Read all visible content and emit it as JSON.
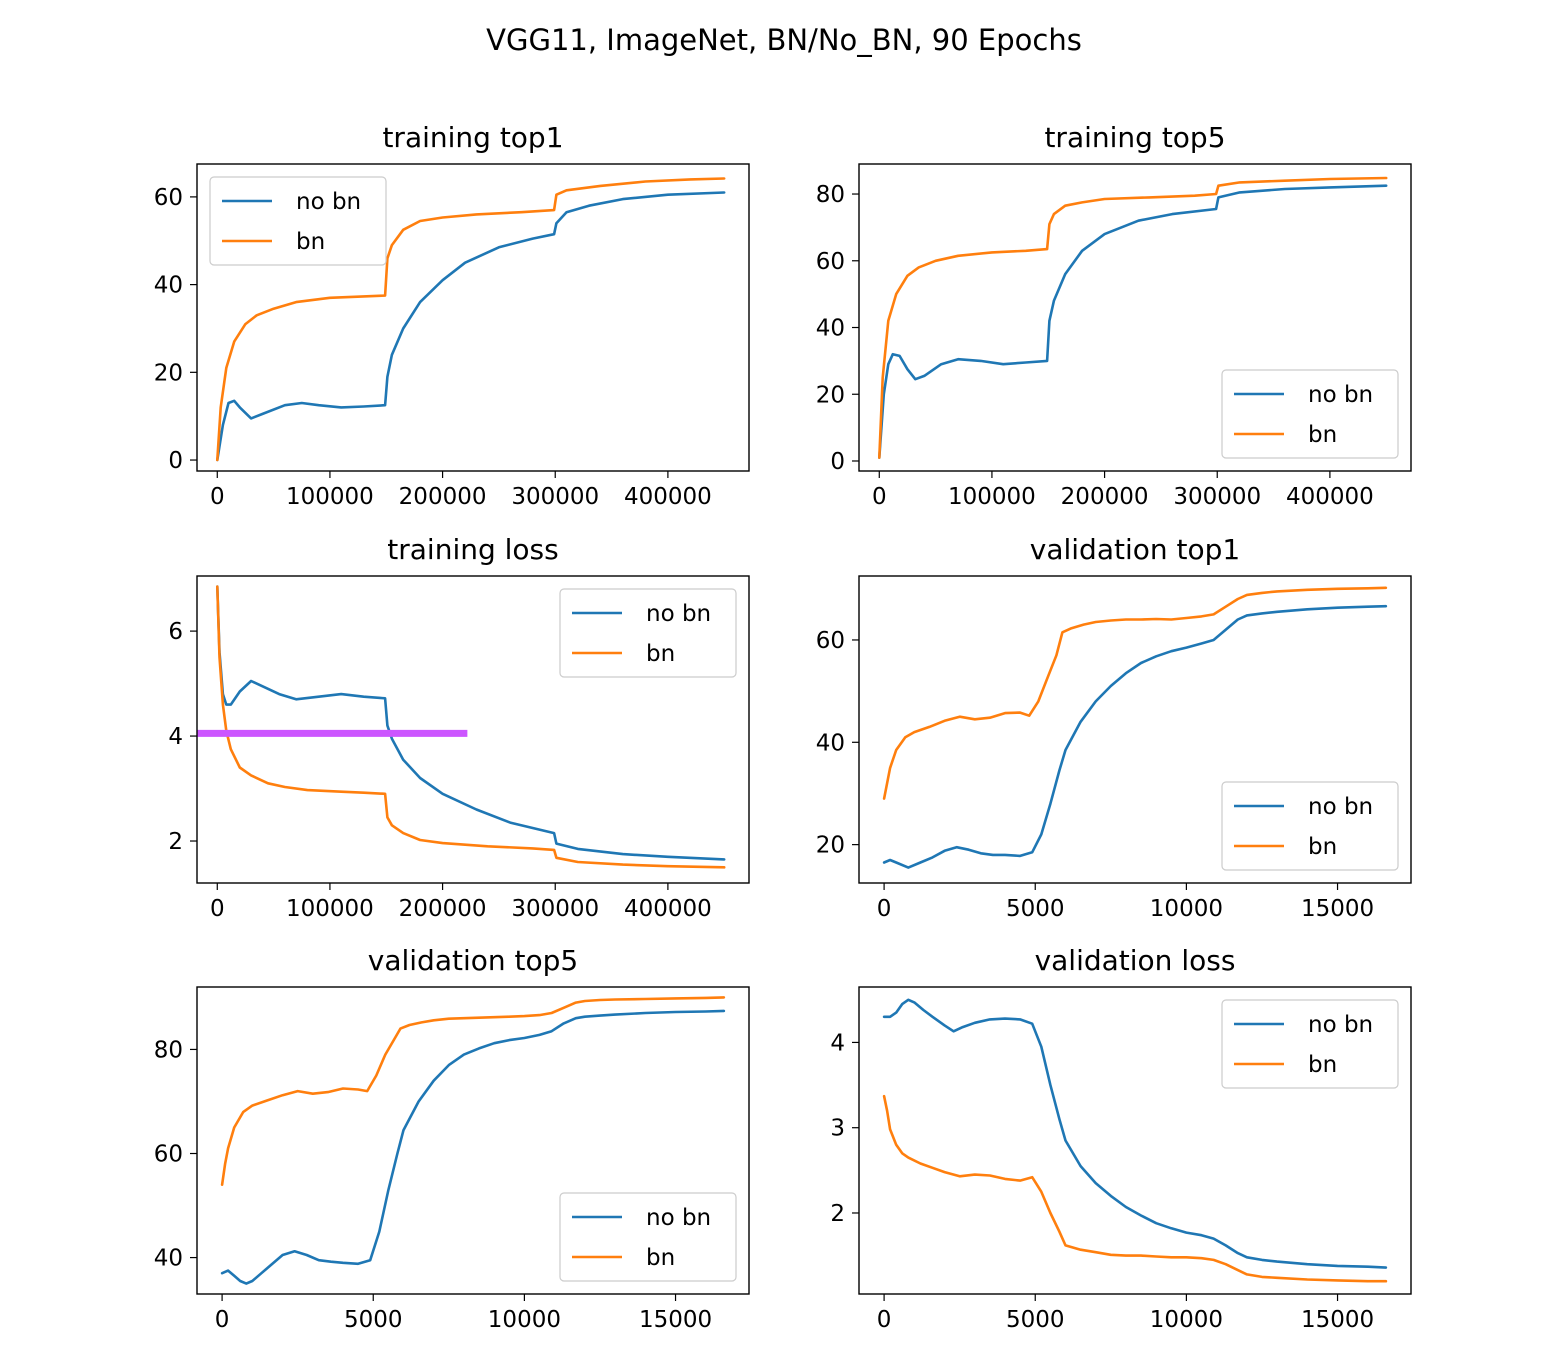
{
  "figure": {
    "title": "VGG11, ImageNet, BN/No_BN, 90 Epochs"
  },
  "colors": {
    "no_bn": "#1f77b4",
    "bn": "#ff7f0e",
    "highlight": "#cc55ff"
  },
  "chart_data": [
    {
      "id": "training_top1",
      "type": "line",
      "title": "training top1",
      "xlim": [
        -18000,
        472000
      ],
      "ylim": [
        -2.5,
        67.5
      ],
      "xticks": [
        0,
        100000,
        200000,
        300000,
        400000
      ],
      "yticks": [
        0,
        20,
        40,
        60
      ],
      "legend": {
        "position": "upper-left",
        "labels": [
          "no bn",
          "bn"
        ]
      },
      "series": [
        {
          "name": "no bn",
          "color_key": "no_bn",
          "x": [
            0,
            5000,
            10000,
            15000,
            20000,
            30000,
            40000,
            60000,
            75000,
            90000,
            110000,
            130000,
            149000,
            151000,
            155000,
            165000,
            180000,
            200000,
            220000,
            250000,
            280000,
            299000,
            301000,
            310000,
            330000,
            360000,
            400000,
            450000
          ],
          "y": [
            0,
            8,
            13,
            13.5,
            12,
            9.5,
            10.5,
            12.5,
            13,
            12.5,
            12,
            12.2,
            12.5,
            19,
            24,
            30,
            36,
            41,
            45,
            48.5,
            50.5,
            51.5,
            54,
            56.5,
            58,
            59.5,
            60.5,
            61
          ]
        },
        {
          "name": "bn",
          "color_key": "bn",
          "x": [
            0,
            3000,
            8000,
            15000,
            25000,
            35000,
            50000,
            70000,
            100000,
            130000,
            149000,
            151000,
            155000,
            165000,
            180000,
            200000,
            230000,
            270000,
            299000,
            301000,
            310000,
            340000,
            380000,
            420000,
            450000
          ],
          "y": [
            0,
            12,
            21,
            27,
            31,
            33,
            34.5,
            36,
            37,
            37.3,
            37.5,
            46,
            49,
            52.5,
            54.5,
            55.3,
            56,
            56.5,
            57,
            60.5,
            61.5,
            62.5,
            63.5,
            64,
            64.2
          ]
        }
      ]
    },
    {
      "id": "training_top5",
      "type": "line",
      "title": "training top5",
      "xlim": [
        -18000,
        472000
      ],
      "ylim": [
        -3,
        89
      ],
      "xticks": [
        0,
        100000,
        200000,
        300000,
        400000
      ],
      "yticks": [
        0,
        20,
        40,
        60,
        80
      ],
      "legend": {
        "position": "lower-right",
        "labels": [
          "no bn",
          "bn"
        ]
      },
      "series": [
        {
          "name": "no bn",
          "color_key": "no_bn",
          "x": [
            0,
            4000,
            8000,
            12000,
            18000,
            25000,
            32000,
            40000,
            55000,
            70000,
            90000,
            110000,
            130000,
            149000,
            151000,
            155000,
            165000,
            180000,
            200000,
            230000,
            260000,
            299000,
            301000,
            320000,
            360000,
            400000,
            450000
          ],
          "y": [
            1,
            20,
            29,
            32,
            31.5,
            27.5,
            24.5,
            25.5,
            29,
            30.5,
            30,
            29,
            29.5,
            30,
            42,
            48,
            56,
            63,
            68,
            72,
            74,
            75.5,
            79,
            80.5,
            81.5,
            82,
            82.5
          ]
        },
        {
          "name": "bn",
          "color_key": "bn",
          "x": [
            0,
            3000,
            8000,
            15000,
            25000,
            35000,
            50000,
            70000,
            100000,
            130000,
            149000,
            151000,
            155000,
            165000,
            180000,
            200000,
            240000,
            280000,
            299000,
            301000,
            320000,
            360000,
            400000,
            450000
          ],
          "y": [
            1,
            25,
            42,
            50,
            55.5,
            58,
            60,
            61.5,
            62.5,
            63,
            63.5,
            71,
            74,
            76.5,
            77.5,
            78.5,
            79,
            79.5,
            80,
            82.5,
            83.5,
            84,
            84.5,
            84.8
          ]
        }
      ]
    },
    {
      "id": "training_loss",
      "type": "line",
      "title": "training loss",
      "xlim": [
        -18000,
        472000
      ],
      "ylim": [
        1.2,
        7.05
      ],
      "xticks": [
        0,
        100000,
        200000,
        300000,
        400000
      ],
      "yticks": [
        2,
        4,
        6
      ],
      "legend": {
        "position": "upper-right",
        "labels": [
          "no bn",
          "bn"
        ]
      },
      "highlight_line": {
        "y": 4.05,
        "x0": -18000,
        "x1": 222000
      },
      "series": [
        {
          "name": "no bn",
          "color_key": "no_bn",
          "x": [
            0,
            2000,
            5000,
            8000,
            12000,
            20000,
            30000,
            40000,
            55000,
            70000,
            90000,
            110000,
            130000,
            149000,
            151000,
            155000,
            165000,
            180000,
            200000,
            230000,
            260000,
            299000,
            301000,
            320000,
            360000,
            400000,
            450000
          ],
          "y": [
            6.85,
            5.6,
            4.8,
            4.6,
            4.6,
            4.85,
            5.05,
            4.95,
            4.8,
            4.7,
            4.75,
            4.8,
            4.75,
            4.72,
            4.2,
            3.95,
            3.55,
            3.2,
            2.9,
            2.6,
            2.35,
            2.15,
            1.95,
            1.85,
            1.75,
            1.7,
            1.65
          ]
        },
        {
          "name": "bn",
          "color_key": "bn",
          "x": [
            0,
            2000,
            5000,
            8000,
            12000,
            20000,
            30000,
            45000,
            60000,
            80000,
            110000,
            130000,
            149000,
            151000,
            155000,
            165000,
            180000,
            200000,
            240000,
            280000,
            299000,
            301000,
            320000,
            360000,
            400000,
            450000
          ],
          "y": [
            6.85,
            5.5,
            4.6,
            4.1,
            3.75,
            3.4,
            3.25,
            3.1,
            3.03,
            2.97,
            2.94,
            2.92,
            2.9,
            2.45,
            2.3,
            2.15,
            2.02,
            1.96,
            1.9,
            1.86,
            1.83,
            1.68,
            1.6,
            1.55,
            1.52,
            1.5
          ]
        }
      ]
    },
    {
      "id": "validation_top1",
      "type": "line",
      "title": "validation top1",
      "xlim": [
        -830,
        17430
      ],
      "ylim": [
        12.5,
        72.5
      ],
      "xticks": [
        0,
        5000,
        10000,
        15000
      ],
      "yticks": [
        20,
        40,
        60
      ],
      "legend": {
        "position": "lower-right",
        "labels": [
          "no bn",
          "bn"
        ]
      },
      "series": [
        {
          "name": "no bn",
          "color_key": "no_bn",
          "x": [
            0,
            200,
            400,
            800,
            1200,
            1600,
            2000,
            2400,
            2800,
            3200,
            3600,
            4000,
            4500,
            4900,
            5200,
            5500,
            5800,
            6000,
            6500,
            7000,
            7500,
            8000,
            8500,
            9000,
            9500,
            10000,
            10500,
            10900,
            11300,
            11700,
            12000,
            12500,
            13000,
            14000,
            15000,
            16000,
            16600
          ],
          "y": [
            16.5,
            17,
            16.5,
            15.5,
            16.5,
            17.5,
            18.8,
            19.5,
            19,
            18.3,
            18,
            18,
            17.8,
            18.5,
            22,
            28,
            34.5,
            38.5,
            44,
            48,
            51,
            53.5,
            55.5,
            56.8,
            57.8,
            58.5,
            59.3,
            60,
            62,
            64,
            64.8,
            65.2,
            65.5,
            66,
            66.3,
            66.5,
            66.6
          ]
        },
        {
          "name": "bn",
          "color_key": "bn",
          "x": [
            0,
            100,
            200,
            400,
            700,
            1000,
            1500,
            2000,
            2500,
            3000,
            3500,
            4000,
            4500,
            4800,
            5100,
            5400,
            5700,
            5900,
            6200,
            6600,
            7000,
            7500,
            8000,
            8500,
            9000,
            9500,
            10000,
            10500,
            10900,
            11300,
            11700,
            12000,
            12500,
            13000,
            14000,
            15000,
            16000,
            16600
          ],
          "y": [
            29,
            32,
            35,
            38.5,
            41,
            42,
            43,
            44.2,
            45,
            44.5,
            44.8,
            45.7,
            45.8,
            45.2,
            48,
            52.5,
            57,
            61.5,
            62.3,
            63,
            63.5,
            63.8,
            64,
            64,
            64.1,
            64,
            64.3,
            64.6,
            65,
            66.5,
            68,
            68.8,
            69.2,
            69.5,
            69.8,
            70,
            70.1,
            70.2
          ]
        }
      ]
    },
    {
      "id": "validation_top5",
      "type": "line",
      "title": "validation top5",
      "xlim": [
        -830,
        17430
      ],
      "ylim": [
        33,
        92
      ],
      "xticks": [
        0,
        5000,
        10000,
        15000
      ],
      "yticks": [
        40,
        60,
        80
      ],
      "legend": {
        "position": "lower-right",
        "labels": [
          "no bn",
          "bn"
        ]
      },
      "series": [
        {
          "name": "no bn",
          "color_key": "no_bn",
          "x": [
            0,
            200,
            400,
            600,
            800,
            1000,
            1300,
            1600,
            2000,
            2400,
            2800,
            3200,
            3600,
            4000,
            4500,
            4900,
            5200,
            5500,
            5800,
            6000,
            6500,
            7000,
            7500,
            8000,
            8500,
            9000,
            9500,
            10000,
            10500,
            10900,
            11300,
            11700,
            12000,
            12500,
            13000,
            14000,
            15000,
            16000,
            16600
          ],
          "y": [
            37,
            37.5,
            36.5,
            35.5,
            35,
            35.5,
            37,
            38.5,
            40.5,
            41.2,
            40.5,
            39.5,
            39.2,
            39,
            38.8,
            39.5,
            45,
            53,
            60,
            64.5,
            70,
            74,
            77,
            79,
            80.2,
            81.2,
            81.8,
            82.2,
            82.8,
            83.5,
            85,
            86,
            86.3,
            86.5,
            86.7,
            87,
            87.2,
            87.3,
            87.4
          ]
        },
        {
          "name": "bn",
          "color_key": "bn",
          "x": [
            0,
            100,
            200,
            400,
            700,
            1000,
            1500,
            2000,
            2500,
            3000,
            3500,
            4000,
            4500,
            4800,
            5100,
            5400,
            5700,
            5900,
            6200,
            6600,
            7000,
            7500,
            8000,
            8500,
            9000,
            9500,
            10000,
            10500,
            10900,
            11300,
            11700,
            12000,
            12500,
            13000,
            14000,
            15000,
            16000,
            16600
          ],
          "y": [
            54,
            58,
            61,
            65,
            68,
            69.2,
            70.2,
            71.2,
            72,
            71.5,
            71.8,
            72.5,
            72.3,
            72,
            75,
            79,
            82,
            84,
            84.7,
            85.2,
            85.6,
            85.9,
            86,
            86.1,
            86.2,
            86.3,
            86.4,
            86.6,
            87,
            88,
            89,
            89.3,
            89.5,
            89.6,
            89.7,
            89.8,
            89.9,
            90
          ]
        }
      ]
    },
    {
      "id": "validation_loss",
      "type": "line",
      "title": "validation loss",
      "xlim": [
        -830,
        17430
      ],
      "ylim": [
        1.05,
        4.65
      ],
      "xticks": [
        0,
        5000,
        10000,
        15000
      ],
      "yticks": [
        2,
        3,
        4
      ],
      "legend": {
        "position": "upper-right",
        "labels": [
          "no bn",
          "bn"
        ]
      },
      "series": [
        {
          "name": "no bn",
          "color_key": "no_bn",
          "x": [
            0,
            200,
            400,
            600,
            800,
            1000,
            1300,
            1600,
            2000,
            2300,
            2600,
            3000,
            3500,
            4000,
            4500,
            4900,
            5200,
            5500,
            5800,
            6000,
            6500,
            7000,
            7500,
            8000,
            8500,
            9000,
            9500,
            10000,
            10500,
            10900,
            11300,
            11700,
            12000,
            12500,
            13000,
            14000,
            15000,
            16000,
            16600
          ],
          "y": [
            4.3,
            4.3,
            4.35,
            4.45,
            4.5,
            4.47,
            4.38,
            4.3,
            4.2,
            4.13,
            4.18,
            4.23,
            4.27,
            4.28,
            4.27,
            4.22,
            3.95,
            3.5,
            3.1,
            2.85,
            2.55,
            2.35,
            2.2,
            2.07,
            1.97,
            1.88,
            1.82,
            1.77,
            1.74,
            1.7,
            1.62,
            1.53,
            1.48,
            1.45,
            1.43,
            1.4,
            1.38,
            1.37,
            1.36
          ]
        },
        {
          "name": "bn",
          "color_key": "bn",
          "x": [
            0,
            100,
            200,
            400,
            600,
            800,
            1200,
            1600,
            2000,
            2500,
            3000,
            3500,
            4000,
            4500,
            4900,
            5200,
            5500,
            5800,
            6000,
            6500,
            7000,
            7500,
            8000,
            8500,
            9000,
            9500,
            10000,
            10500,
            10900,
            11300,
            11700,
            12000,
            12500,
            13000,
            14000,
            15000,
            16000,
            16600
          ],
          "y": [
            3.37,
            3.2,
            2.98,
            2.8,
            2.7,
            2.65,
            2.58,
            2.53,
            2.48,
            2.43,
            2.45,
            2.44,
            2.4,
            2.38,
            2.42,
            2.25,
            2.0,
            1.78,
            1.62,
            1.57,
            1.54,
            1.51,
            1.5,
            1.5,
            1.49,
            1.48,
            1.48,
            1.47,
            1.45,
            1.4,
            1.33,
            1.28,
            1.25,
            1.24,
            1.22,
            1.21,
            1.2,
            1.2
          ]
        }
      ]
    }
  ]
}
